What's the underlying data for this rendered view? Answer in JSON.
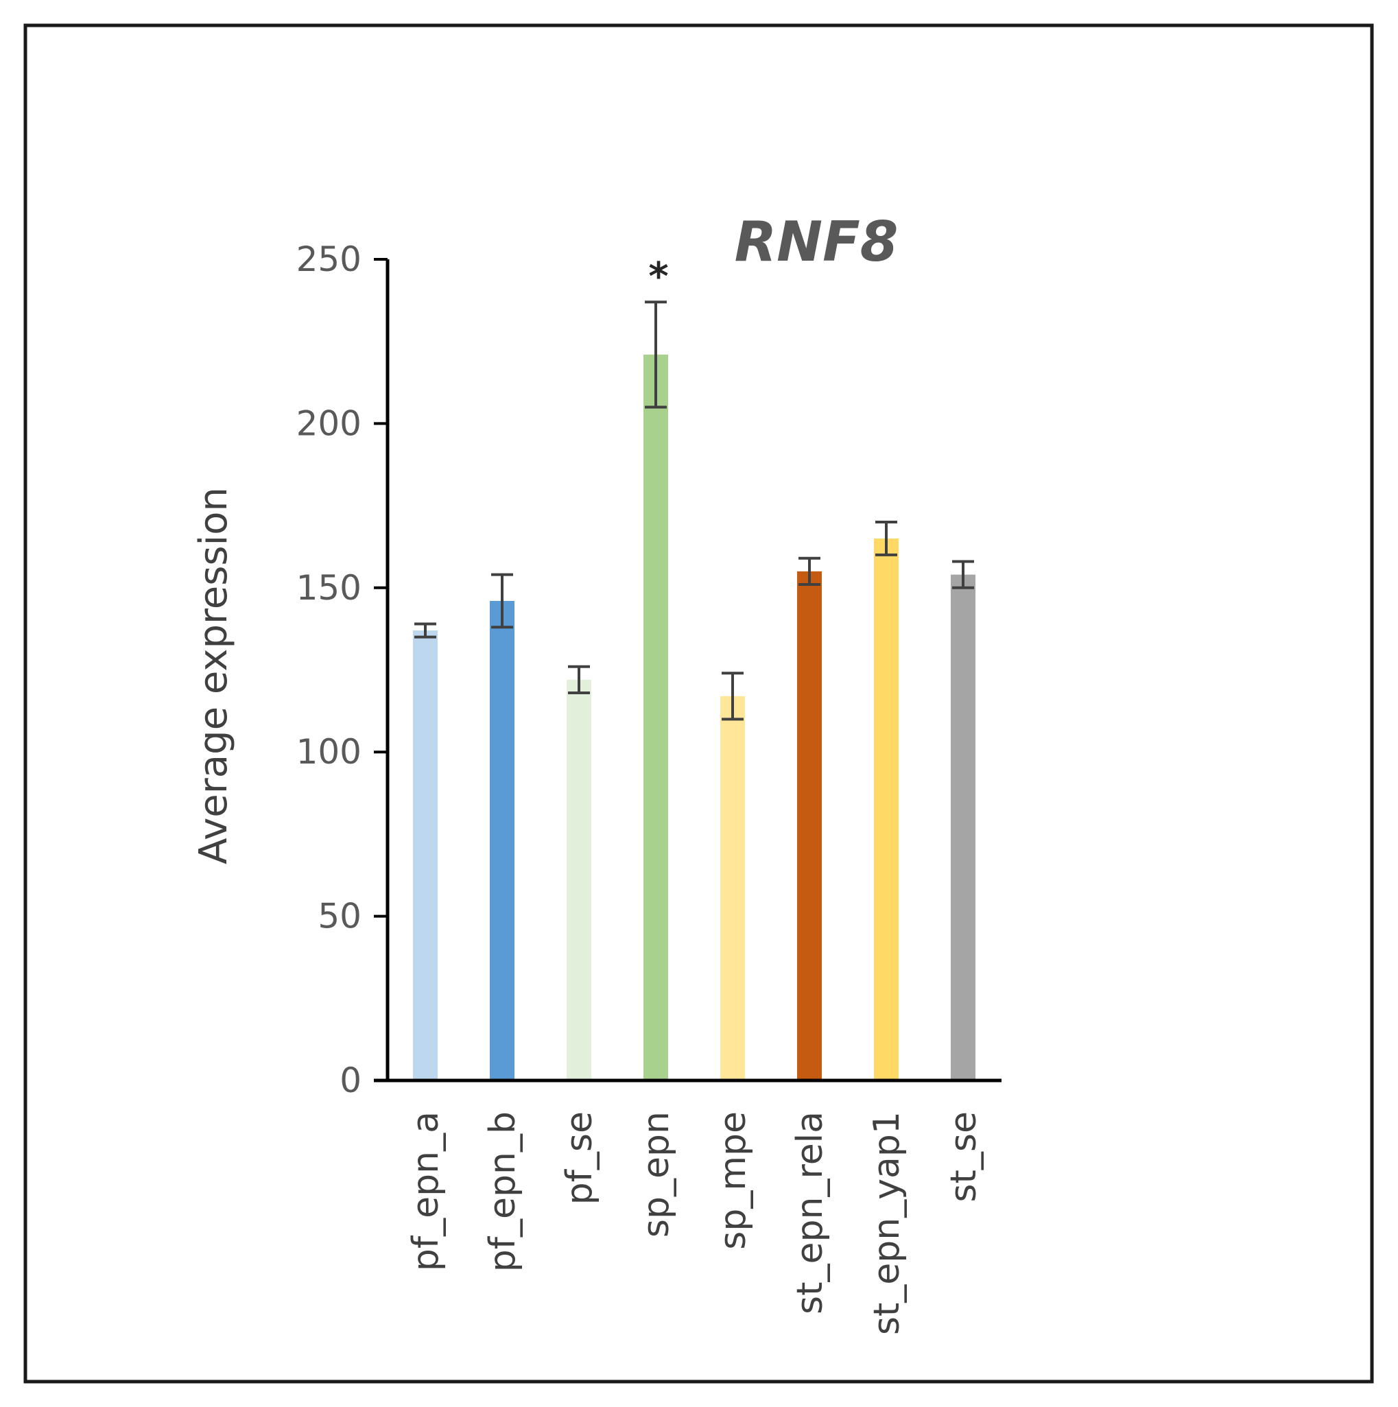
{
  "chart_data": {
    "type": "bar",
    "title": "RNF8",
    "xlabel": "",
    "ylabel": "Average expression",
    "ylim": [
      0,
      250
    ],
    "yticks": [
      0,
      50,
      100,
      150,
      200,
      250
    ],
    "grid": false,
    "legend": "none",
    "categories": [
      "pf_epn_a",
      "pf_epn_b",
      "pf_se",
      "sp_epn",
      "sp_mpe",
      "st_epn_rela",
      "st_epn_yap1",
      "st_se"
    ],
    "series": [
      {
        "values": [
          137,
          146,
          122,
          221,
          117,
          155,
          165,
          154
        ],
        "error": [
          2,
          8,
          4,
          16,
          7,
          4,
          5,
          4
        ],
        "colors": [
          "#BDD7EE",
          "#5B9BD5",
          "#E2EFDA",
          "#A9D18E",
          "#FFE699",
          "#C55A11",
          "#FFD966",
          "#A5A5A5"
        ]
      }
    ],
    "annotations": [
      {
        "category": "sp_epn",
        "text": "*"
      }
    ]
  }
}
